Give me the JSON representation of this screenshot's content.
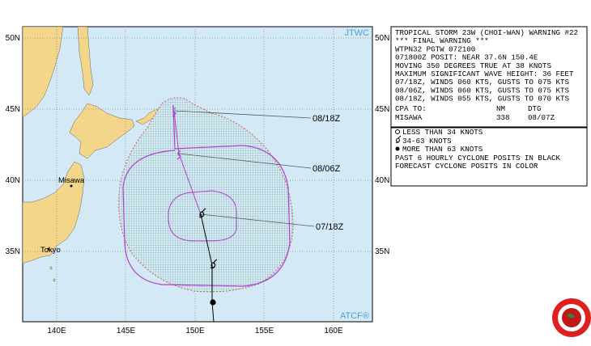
{
  "warning": {
    "lines": [
      "TROPICAL STORM 23W (CHOI-WAN) WARNING #22",
      "*** FINAL WARNING ***",
      "WTPN32 PGTW 072100",
      "071800Z POSIT: NEAR 37.6N 150.4E",
      "MOVING 350 DEGREES TRUE AT 38 KNOTS",
      "MAXIMUM SIGNIFICANT WAVE HEIGHT: 36 FEET",
      "07/18Z, WINDS 060 KTS, GUSTS TO 075 KTS",
      "08/06Z, WINDS 060 KTS, GUSTS TO 075 KTS",
      "08/18Z, WINDS 055 KTS, GUSTS TO 070 KTS"
    ],
    "cpa_header": [
      "CPA TO:",
      "NM",
      "DTG"
    ],
    "cpa_row": [
      "MISAWA",
      "338",
      "08/07Z"
    ]
  },
  "legend": {
    "items": [
      "LESS THAN 34 KNOTS",
      "34-63 KNOTS",
      "MORE THAN 63 KNOTS"
    ],
    "notes": [
      "PAST 6 HOURLY CYCLONE POSITS IN BLACK",
      "FORECAST CYCLONE POSITS IN COLOR"
    ]
  },
  "map": {
    "credit_top": "JTWC",
    "credit_bottom": "ATCF®",
    "lat_labels": [
      "50N",
      "45N",
      "40N",
      "35N"
    ],
    "lon_labels": [
      "140E",
      "145E",
      "150E",
      "155E",
      "160E"
    ],
    "places": [
      "Misawa",
      "Tokyo"
    ],
    "forecast_labels": [
      "08/18Z",
      "08/06Z",
      "07/18Z"
    ]
  }
}
